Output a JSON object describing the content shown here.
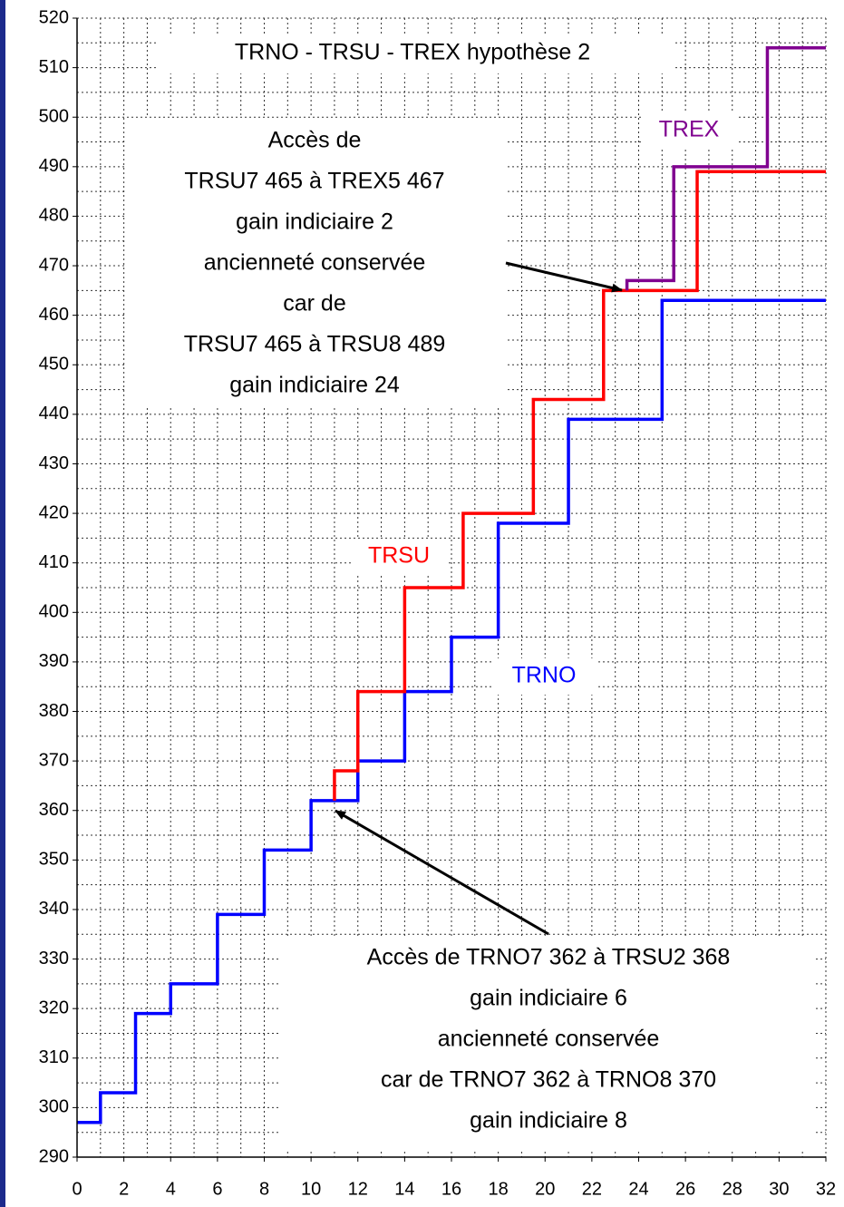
{
  "chart_data": {
    "type": "step",
    "title": "TRNO - TRSU - TREX hypothèse 2",
    "xlim": [
      0,
      32
    ],
    "xticks": [
      0,
      2,
      4,
      6,
      8,
      10,
      12,
      14,
      16,
      18,
      20,
      22,
      24,
      26,
      28,
      30,
      32
    ],
    "ylim": [
      290,
      520
    ],
    "yticks": [
      290,
      300,
      310,
      320,
      330,
      340,
      350,
      360,
      370,
      380,
      390,
      400,
      410,
      420,
      430,
      440,
      450,
      460,
      470,
      480,
      490,
      500,
      510,
      520
    ],
    "grid": true,
    "series": [
      {
        "name": "TRNO",
        "color": "#0000ff",
        "x": [
          0,
          1,
          2.5,
          4,
          6,
          8,
          10,
          12,
          14,
          16,
          18,
          21,
          25
        ],
        "values": [
          297,
          303,
          319,
          325,
          339,
          352,
          362,
          370,
          384,
          395,
          418,
          439,
          463
        ]
      },
      {
        "name": "TRSU",
        "color": "#ff0000",
        "x": [
          11,
          11,
          12,
          14,
          16.5,
          19.5,
          22.5,
          26.5
        ],
        "values": [
          362,
          368,
          384,
          405,
          420,
          443,
          465,
          489
        ]
      },
      {
        "name": "TREX",
        "color": "#800090",
        "x": [
          23.5,
          23.5,
          25.5,
          29.5
        ],
        "values": [
          465,
          467,
          490,
          514
        ]
      }
    ],
    "annotations": [
      [
        "Accès de",
        "TRSU7 465 à TREX5 467",
        "gain indiciaire 2",
        "ancienneté conservée",
        "car de",
        "TRSU7 465 à TRSU8 489",
        "gain indiciaire 24"
      ],
      [
        "Accès de TRNO7 362 à TRSU2 368",
        "gain indiciaire 6",
        "ancienneté conservée",
        "car de TRNO7 362 à TRNO8 370",
        "gain indiciaire 8"
      ]
    ]
  }
}
